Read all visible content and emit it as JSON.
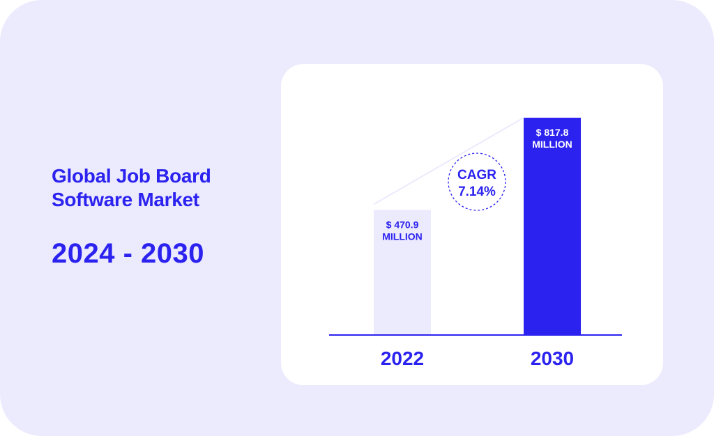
{
  "heading": {
    "title_line1": "Global Job Board",
    "title_line2": "Software Market",
    "period": "2024 - 2030"
  },
  "colors": {
    "accent": "#2b22ef",
    "background": "#eceafd",
    "bar_light": "#eceafd",
    "bar_dark": "#2b22ef",
    "card": "#ffffff"
  },
  "chart_data": {
    "type": "bar",
    "categories": [
      "2022",
      "2030"
    ],
    "values": [
      470.9,
      817.8
    ],
    "value_labels": [
      [
        "$ 470.9",
        "MILLION"
      ],
      [
        "$ 817.8",
        "MILLION"
      ]
    ],
    "annotation": {
      "line1": "CAGR",
      "line2": "7.14%"
    },
    "ylim": [
      0,
      817.8
    ],
    "grid": false,
    "title": "",
    "xlabel": "",
    "ylabel": ""
  }
}
